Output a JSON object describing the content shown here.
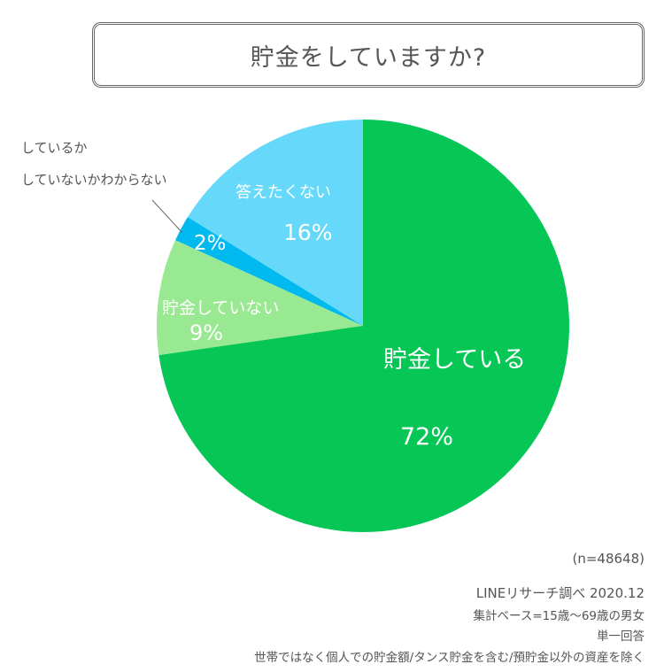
{
  "chart_data": {
    "type": "pie",
    "title": "貯金をしていますか?",
    "slices": [
      {
        "label": "貯金している",
        "value": 72,
        "value_label": "72%",
        "color": "#06c755"
      },
      {
        "label": "貯金していない",
        "value": 9,
        "value_label": "9%",
        "color": "#99e892"
      },
      {
        "label": "しているかしていないかわからない",
        "label_lines": [
          "しているか",
          "していないかわからない"
        ],
        "value": 2,
        "value_label": "2%",
        "color": "#00b9ef"
      },
      {
        "label": "答えたくない",
        "value": 16,
        "value_label": "16%",
        "color": "#66d9fb"
      }
    ],
    "start": "top",
    "direction": "clockwise"
  },
  "notes": {
    "n": "(n=48648)",
    "source": "LINEリサーチ調べ 2020.12",
    "base": "集計ベース=15歳～69歳の男女",
    "answer_type": "単一回答",
    "caveat": "世帯ではなく個人での貯金額/タンス貯金を含む/預貯金以外の資産を除く"
  }
}
